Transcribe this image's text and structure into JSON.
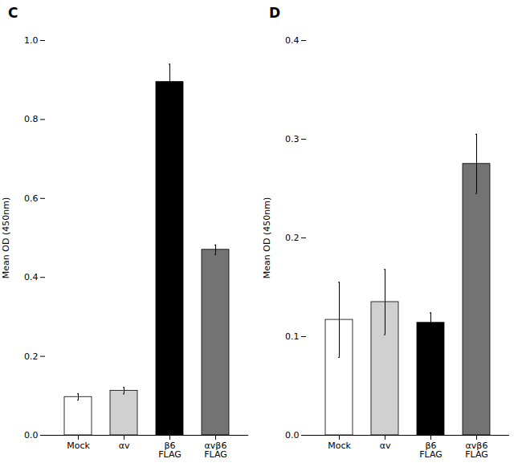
{
  "chart_data": [
    {
      "type": "bar",
      "title": "C",
      "categories": [
        "Mock",
        "αv",
        "β6\nFLAG",
        "αvβ6\nFLAG"
      ],
      "values": [
        0.097,
        0.113,
        0.895,
        0.47
      ],
      "errors": [
        0.008,
        0.008,
        0.045,
        0.012
      ],
      "colors": [
        "#ffffff",
        "#d0d0d0",
        "#000000",
        "#737373"
      ],
      "y_label": "Mean OD (450nm)",
      "ylim": [
        0,
        1.0
      ],
      "yticks": [
        {
          "value": 0.0,
          "label": "0.0"
        },
        0.2,
        0.4,
        0.6,
        0.8,
        {
          "value": 1.0,
          "label": "1.0"
        }
      ],
      "grid": false
    },
    {
      "type": "bar",
      "title": "D",
      "categories": [
        "Mock",
        "αv",
        "β6\nFLAG",
        "αvβ6\nFLAG"
      ],
      "values": [
        0.117,
        0.135,
        0.114,
        0.275
      ],
      "errors": [
        0.038,
        0.033,
        0.01,
        0.03
      ],
      "colors": [
        "#ffffff",
        "#d0d0d0",
        "#000000",
        "#737373"
      ],
      "y_label": "Mean OD (450nm)",
      "ylim": [
        0,
        0.4
      ],
      "yticks": [
        {
          "value": 0.0,
          "label": "0.0"
        },
        0.1,
        0.2,
        0.3,
        0.4
      ],
      "grid": false
    }
  ]
}
